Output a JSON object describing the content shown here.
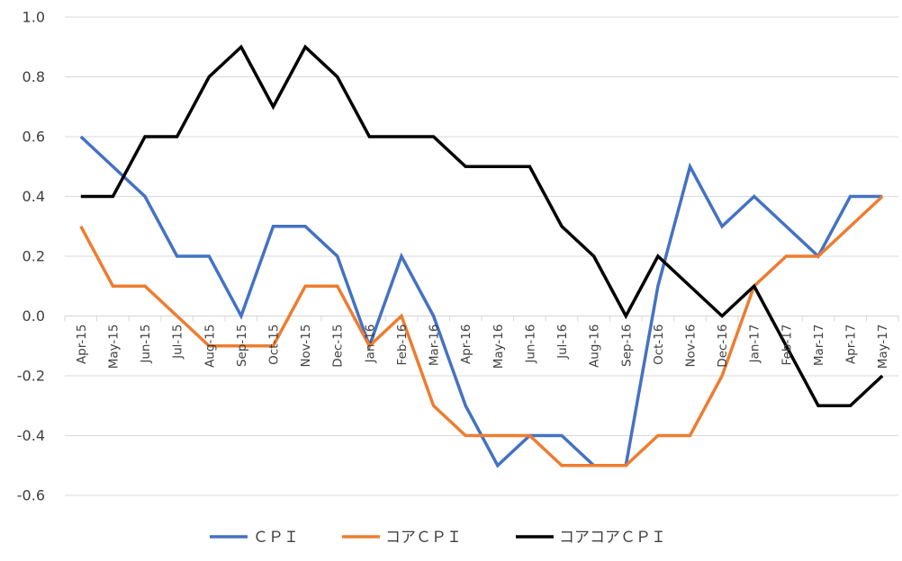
{
  "chart_data": {
    "type": "line",
    "title": "",
    "xlabel": "",
    "ylabel": "",
    "ylim": [
      -0.6,
      1.0
    ],
    "yticks": [
      "1.0",
      "0.8",
      "0.6",
      "0.4",
      "0.2",
      "0.0",
      "-0.2",
      "-0.4",
      "-0.6"
    ],
    "grid": "horizontal",
    "legend_position": "bottom",
    "categories": [
      "Apr-15",
      "May-15",
      "Jun-15",
      "Jul-15",
      "Aug-15",
      "Sep-15",
      "Oct-15",
      "Nov-15",
      "Dec-15",
      "Jan-16",
      "Feb-16",
      "Mar-16",
      "Apr-16",
      "May-16",
      "Jun-16",
      "Jul-16",
      "Aug-16",
      "Sep-16",
      "Oct-16",
      "Nov-16",
      "Dec-16",
      "Jan-17",
      "Feb-17",
      "Mar-17",
      "Apr-17",
      "May-17"
    ],
    "series": [
      {
        "name": "ＣＰＩ",
        "color": "#4472C4",
        "values": [
          0.6,
          0.5,
          0.4,
          0.2,
          0.2,
          0.0,
          0.3,
          0.3,
          0.2,
          -0.1,
          0.2,
          0.0,
          -0.3,
          -0.5,
          -0.4,
          -0.4,
          -0.5,
          -0.5,
          0.1,
          0.5,
          0.3,
          0.4,
          0.3,
          0.2,
          0.4,
          0.4
        ]
      },
      {
        "name": "コアＣＰＩ",
        "color": "#ED7D31",
        "values": [
          0.3,
          0.1,
          0.1,
          0.0,
          -0.1,
          -0.1,
          -0.1,
          0.1,
          0.1,
          -0.1,
          0.0,
          -0.3,
          -0.4,
          -0.4,
          -0.4,
          -0.5,
          -0.5,
          -0.5,
          -0.4,
          -0.4,
          -0.2,
          0.1,
          0.2,
          0.2,
          0.3,
          0.4
        ]
      },
      {
        "name": "コアコアＣＰＩ",
        "color": "#000000",
        "values": [
          0.4,
          0.4,
          0.6,
          0.6,
          0.8,
          0.9,
          0.7,
          0.9,
          0.8,
          0.6,
          0.6,
          0.6,
          0.5,
          0.5,
          0.5,
          0.3,
          0.2,
          0.0,
          0.2,
          0.1,
          0.0,
          0.1,
          -0.1,
          -0.3,
          -0.3,
          -0.2
        ]
      }
    ]
  }
}
